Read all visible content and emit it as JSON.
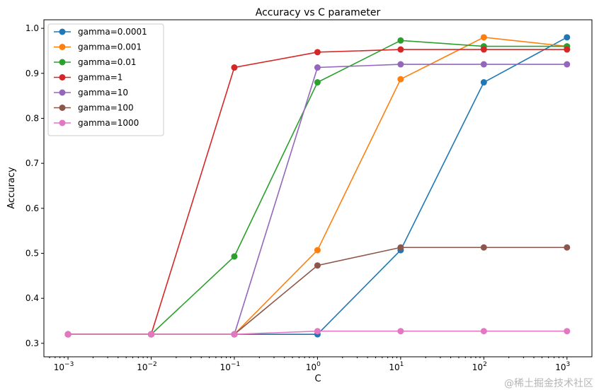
{
  "chart_data": {
    "type": "line",
    "title": "Accuracy vs C parameter",
    "xlabel": "C",
    "ylabel": "Accuracy",
    "xscale": "log",
    "x": [
      0.001,
      0.01,
      0.1,
      1,
      10,
      100,
      1000
    ],
    "xtick_labels": [
      {
        "base": "10",
        "exp": "−3"
      },
      {
        "base": "10",
        "exp": "−2"
      },
      {
        "base": "10",
        "exp": "−1"
      },
      {
        "base": "10",
        "exp": "0"
      },
      {
        "base": "10",
        "exp": "1"
      },
      {
        "base": "10",
        "exp": "2"
      },
      {
        "base": "10",
        "exp": "3"
      }
    ],
    "yticks": [
      "0.3",
      "0.4",
      "0.5",
      "0.6",
      "0.7",
      "0.8",
      "0.9",
      "1.0"
    ],
    "xlim_log10": [
      -3.29,
      3.3
    ],
    "ylim": [
      0.27,
      1.019
    ],
    "grid": false,
    "legend_position": "top-left",
    "series": [
      {
        "name": "gamma=0.0001",
        "color": "#1f77b4",
        "values": [
          0.32,
          0.32,
          0.32,
          0.32,
          0.507,
          0.88,
          0.98
        ]
      },
      {
        "name": "gamma=0.001",
        "color": "#ff7f0e",
        "values": [
          0.32,
          0.32,
          0.32,
          0.507,
          0.887,
          0.98,
          0.96
        ]
      },
      {
        "name": "gamma=0.01",
        "color": "#2ca02c",
        "values": [
          0.32,
          0.32,
          0.493,
          0.88,
          0.973,
          0.96,
          0.96
        ]
      },
      {
        "name": "gamma=1",
        "color": "#d62728",
        "values": [
          0.32,
          0.32,
          0.913,
          0.947,
          0.953,
          0.953,
          0.953
        ]
      },
      {
        "name": "gamma=10",
        "color": "#9467bd",
        "values": [
          0.32,
          0.32,
          0.32,
          0.913,
          0.92,
          0.92,
          0.92
        ]
      },
      {
        "name": "gamma=100",
        "color": "#8c564b",
        "values": [
          0.32,
          0.32,
          0.32,
          0.473,
          0.513,
          0.513,
          0.513
        ]
      },
      {
        "name": "gamma=1000",
        "color": "#e377c2",
        "values": [
          0.32,
          0.32,
          0.32,
          0.327,
          0.327,
          0.327,
          0.327
        ]
      }
    ]
  },
  "watermark": "@稀土掘金技术社区"
}
